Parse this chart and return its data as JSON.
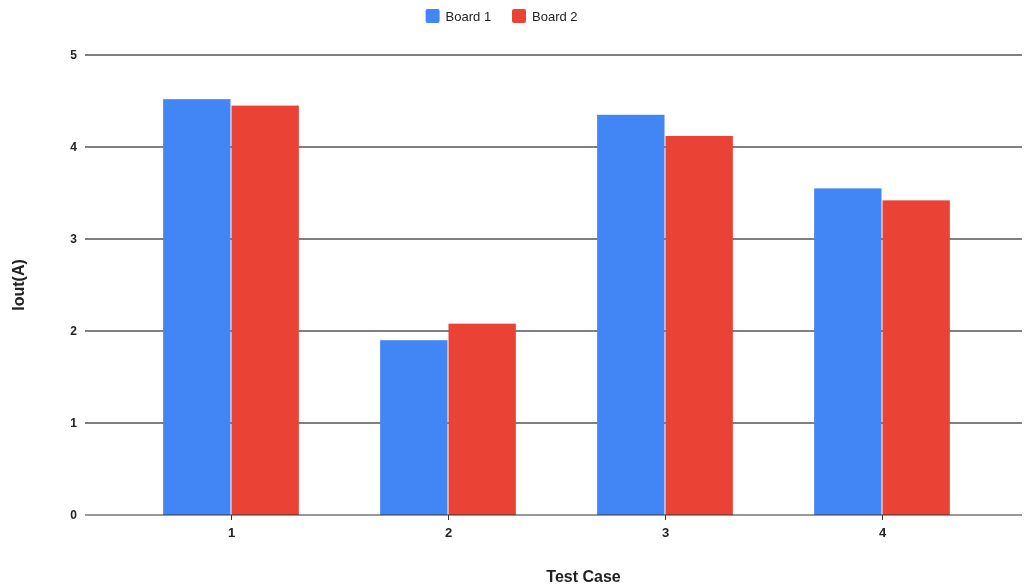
{
  "chart_data": {
    "type": "bar",
    "xlabel": "Test Case",
    "ylabel": "Iout(A)",
    "categories": [
      "1",
      "2",
      "3",
      "4"
    ],
    "series": [
      {
        "name": "Board 1",
        "color": "#4285f4",
        "values": [
          4.52,
          1.9,
          4.35,
          3.55
        ]
      },
      {
        "name": "Board 2",
        "color": "#ea4335",
        "values": [
          4.45,
          2.08,
          4.12,
          3.42
        ]
      }
    ],
    "ylim": [
      0,
      5
    ],
    "yticks": [
      0,
      1,
      2,
      3,
      4,
      5
    ],
    "grid": "y",
    "legend": "top"
  }
}
